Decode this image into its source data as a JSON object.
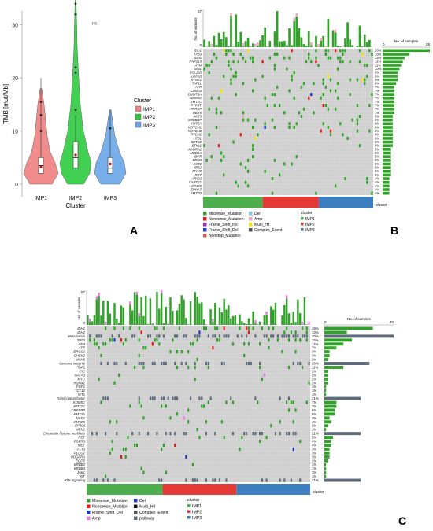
{
  "chart_data": [
    {
      "type": "violin",
      "panel_label": "A",
      "xlabel": "Cluster",
      "ylabel": "TMB [mut/Mb]",
      "categories": [
        "IMP1",
        "IMP2",
        "IMP3"
      ],
      "ylim": [
        0,
        35
      ],
      "yticks": [
        0,
        10,
        20,
        30
      ],
      "annotation": "ns",
      "legend": {
        "title": "Cluster",
        "entries": [
          "IMP1",
          "IMP2",
          "IMP3"
        ],
        "placement": "right"
      },
      "colors": [
        "#f08080",
        "#2ecc40",
        "#6aa6e8"
      ],
      "box_stats": [
        {
          "median": 3.5,
          "q1": 2,
          "q3": 5,
          "mean": 3.2,
          "min": 0,
          "max": 20
        },
        {
          "median": 5,
          "q1": 3,
          "q3": 8,
          "mean": 5.5,
          "min": 0,
          "max": 35
        },
        {
          "median": 3,
          "q1": 2,
          "q3": 5,
          "mean": 3.8,
          "min": 0,
          "max": 14
        }
      ],
      "outliers": [
        [
          15.5,
          13,
          10
        ],
        [
          22,
          21,
          32,
          34,
          14
        ],
        [
          10.5
        ]
      ]
    },
    {
      "type": "oncoplot",
      "panel_label": "B",
      "top_axis_label": "No. of variants",
      "top_ymax": 57,
      "right_axis_label": "No. of samples",
      "right_xmax": 28,
      "genes": [
        "IDH1",
        "TP53",
        "IDH2",
        "RNF213",
        "ATM",
        "MN1",
        "BCL11B",
        "LRP1B",
        "SYNE1",
        "TAF1L",
        "ATR",
        "CSMD3",
        "DNMT3A",
        "KDM5C",
        "KMT2C",
        "PTPRT",
        "TRRAP",
        "UBR5",
        "AKT3",
        "CREBBP",
        "KMT2A",
        "NOTCH1",
        "NOTCH2",
        "PTCH1",
        "RB1",
        "SETD2",
        "STK11",
        "ADGRA2",
        "ARID1A",
        "BCR",
        "BRD3",
        "EXT2",
        "IRS2",
        "MYH9",
        "RET",
        "ARID2",
        "CARD11",
        "EP400",
        "EPHA7",
        "KMT2D"
      ],
      "percentages": [
        "28%",
        "16%",
        "13%",
        "12%",
        "11%",
        "10%",
        "9%",
        "9%",
        "9%",
        "8%",
        "7%",
        "7%",
        "7%",
        "7%",
        "7%",
        "7%",
        "7%",
        "7%",
        "6%",
        "6%",
        "6%",
        "6%",
        "6%",
        "6%",
        "6%",
        "6%",
        "6%",
        "5%",
        "5%",
        "5%",
        "5%",
        "5%",
        "5%",
        "5%",
        "5%",
        "4%",
        "4%",
        "4%",
        "4%",
        "4%"
      ],
      "legend": [
        {
          "label": "Missense_Mutation",
          "color": "#33a02c"
        },
        {
          "label": "Nonsense_Mutation",
          "color": "#e31a1c"
        },
        {
          "label": "Frame_Shift_Ins",
          "color": "#9b30b0"
        },
        {
          "label": "Frame_Shift_Del",
          "color": "#1f3cbf"
        },
        {
          "label": "Nonstop_Mutation",
          "color": "#d6604d"
        },
        {
          "label": "Del",
          "color": "#7ec8e3"
        },
        {
          "label": "Amp",
          "color": "#f4a6c8"
        },
        {
          "label": "Multi_Hit",
          "color": "#f2e400"
        },
        {
          "label": "Complex_Event",
          "color": "#555555"
        }
      ],
      "cluster_legend": {
        "title": "cluster",
        "entries": [
          "IMP1",
          "IMP2",
          "IMP3"
        ]
      },
      "cluster_bar_label": "cluster"
    },
    {
      "type": "oncoplot",
      "panel_label": "C",
      "top_axis_label": "No. of variants",
      "top_ymax": 57,
      "right_axis_label": "No. of samples",
      "right_xmax": 40,
      "rows": [
        {
          "label": "IDH1",
          "pct": "28%",
          "pathway": false
        },
        {
          "label": "IDH2",
          "pct": "13%",
          "pathway": false
        },
        {
          "label": "Metabolism",
          "pct": "40%",
          "pathway": true
        },
        {
          "label": "TP53",
          "pct": "16%",
          "pathway": false
        },
        {
          "label": "ATM",
          "pct": "11%",
          "pathway": false
        },
        {
          "label": "ATR",
          "pct": "7%",
          "pathway": false
        },
        {
          "label": "ERCC2",
          "pct": "3%",
          "pathway": false
        },
        {
          "label": "CHEK2",
          "pct": "3%",
          "pathway": false
        },
        {
          "label": "MSH6",
          "pct": "2%",
          "pathway": false
        },
        {
          "label": "Genome integrity",
          "pct": "26%",
          "pathway": true
        },
        {
          "label": "TAF1",
          "pct": "11%",
          "pathway": false
        },
        {
          "label": "CIC",
          "pct": "2%",
          "pathway": false
        },
        {
          "label": "GATA3",
          "pct": "2%",
          "pathway": false
        },
        {
          "label": "MYC",
          "pct": "2%",
          "pathway": false
        },
        {
          "label": "RUNX1",
          "pct": "2%",
          "pathway": false
        },
        {
          "label": "FGF1",
          "pct": "1%",
          "pathway": false
        },
        {
          "label": "TCF12",
          "pct": "1%",
          "pathway": false
        },
        {
          "label": "WT1",
          "pct": "1%",
          "pathway": false
        },
        {
          "label": "Transcription factor",
          "pct": "21%",
          "pathway": true
        },
        {
          "label": "KDM5C",
          "pct": "7%",
          "pathway": false
        },
        {
          "label": "KMT2C",
          "pct": "7%",
          "pathway": false
        },
        {
          "label": "CREBBP",
          "pct": "6%",
          "pathway": false
        },
        {
          "label": "KMT2A",
          "pct": "6%",
          "pathway": false
        },
        {
          "label": "NSD1",
          "pct": "3%",
          "pathway": false
        },
        {
          "label": "KMT2D",
          "pct": "4%",
          "pathway": false
        },
        {
          "label": "EP300",
          "pct": "2%",
          "pathway": false
        },
        {
          "label": "MEN1",
          "pct": "1%",
          "pathway": false
        },
        {
          "label": "Chromatin histone modifiers",
          "pct": "21%",
          "pathway": true
        },
        {
          "label": "RET",
          "pct": "5%",
          "pathway": false
        },
        {
          "label": "FGFR3",
          "pct": "4%",
          "pathway": false
        },
        {
          "label": "MET",
          "pct": "4%",
          "pathway": false
        },
        {
          "label": "FLT3",
          "pct": "3%",
          "pathway": false
        },
        {
          "label": "PLCG1",
          "pct": "3%",
          "pathway": false
        },
        {
          "label": "PDGFRA",
          "pct": "3%",
          "pathway": false
        },
        {
          "label": "EGFR",
          "pct": "2%",
          "pathway": false
        },
        {
          "label": "ERBB2",
          "pct": "1%",
          "pathway": false
        },
        {
          "label": "ERBB4",
          "pct": "1%",
          "pathway": false
        },
        {
          "label": "JAK1",
          "pct": "1%",
          "pathway": false
        },
        {
          "label": "KIT",
          "pct": "1%",
          "pathway": false
        },
        {
          "label": "RTK signaling",
          "pct": "21%",
          "pathway": true
        }
      ],
      "legend": [
        {
          "label": "Missense_Mutation",
          "color": "#33a02c"
        },
        {
          "label": "Nonsense_Mutation",
          "color": "#e31a1c"
        },
        {
          "label": "Frame_Shift_Del",
          "color": "#1f3cbf"
        },
        {
          "label": "Amp",
          "color": "#e87be0"
        },
        {
          "label": "Del",
          "color": "#1f3cbf"
        },
        {
          "label": "Multi_Hit",
          "color": "#111111"
        },
        {
          "label": "Complex_Event",
          "color": "#555555"
        },
        {
          "label": "pathway",
          "color": "#5f6b7a"
        }
      ],
      "cluster_legend": {
        "title": "cluster",
        "entries": [
          "IMP1",
          "IMP2",
          "IMP3"
        ]
      },
      "cluster_bar_label": "cluster"
    }
  ],
  "cluster_colors": [
    "#4cae4c",
    "#e53935",
    "#3b7fc0"
  ]
}
